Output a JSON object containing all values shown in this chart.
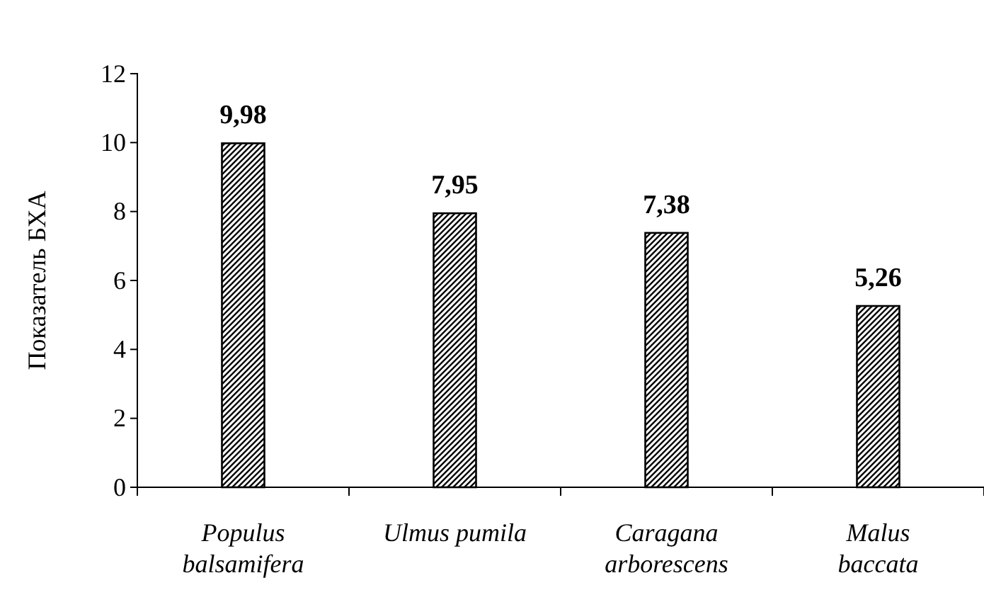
{
  "chart_data": {
    "type": "bar",
    "ylabel": "Показатель БХА",
    "categories": [
      "Populus balsamifera",
      "Ulmus pumila",
      "Caragana arborescens",
      "Malus baccata"
    ],
    "values": [
      9.98,
      7.95,
      7.38,
      5.26
    ],
    "value_labels": [
      "9,98",
      "7,95",
      "7,38",
      "5,26"
    ],
    "color": "#000000",
    "ylim": [
      0,
      12
    ],
    "yticks": [
      0,
      2,
      4,
      6,
      8,
      10,
      12
    ],
    "grid": false
  }
}
